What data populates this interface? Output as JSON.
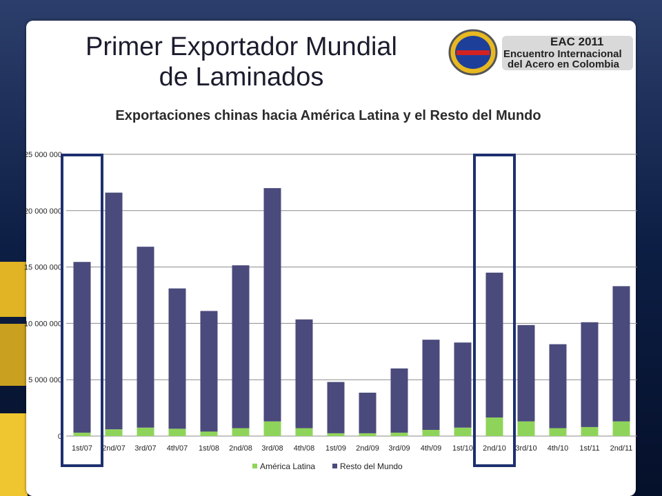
{
  "slide": {
    "title_line1": "Primer Exportador Mundial",
    "title_line2": "de Laminados"
  },
  "logo": {
    "line1": "EAC 2011",
    "line2": "Encuentro Internacional",
    "line3": "del Acero en Colombia"
  },
  "colors": {
    "america_latina": "#8fd45a",
    "resto_del_mundo": "#4b4a7c",
    "highlight_box": "#1d2f6e"
  },
  "chart_data": {
    "type": "bar",
    "stacked": true,
    "title": "Exportaciones chinas hacia América Latina y el Resto del Mundo",
    "categories": [
      "1st/07",
      "2nd/07",
      "3rd/07",
      "4th/07",
      "1st/08",
      "2nd/08",
      "3rd/08",
      "4th/08",
      "1st/09",
      "2nd/09",
      "3rd/09",
      "4th/09",
      "1st/10",
      "2nd/10",
      "3rd/10",
      "4th/10",
      "1st/11",
      "2nd/11"
    ],
    "series": [
      {
        "name": "América Latina",
        "values": [
          300000,
          600000,
          750000,
          650000,
          400000,
          700000,
          1300000,
          700000,
          250000,
          250000,
          300000,
          550000,
          750000,
          1650000,
          1300000,
          700000,
          800000,
          1300000
        ]
      },
      {
        "name": "Resto del Mundo",
        "values": [
          15150000,
          21000000,
          16050000,
          12450000,
          10700000,
          14450000,
          20700000,
          9650000,
          4550000,
          3600000,
          5700000,
          8000000,
          7550000,
          12850000,
          8550000,
          7450000,
          9300000,
          12000000
        ]
      }
    ],
    "ylim": [
      0,
      25000000
    ],
    "yticks": [
      0,
      5000000,
      10000000,
      15000000,
      20000000,
      25000000
    ],
    "ytick_labels": [
      "0",
      "5 000 000",
      "10 000 000",
      "15 000 000",
      "20 000 000",
      "25 000 000"
    ],
    "grid": true,
    "legend_position": "bottom",
    "highlighted_categories": [
      "1st/07",
      "2nd/10"
    ]
  }
}
